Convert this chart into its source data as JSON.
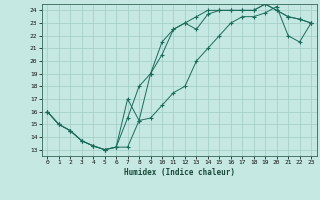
{
  "xlabel": "Humidex (Indice chaleur)",
  "bg_color": "#c5e8e2",
  "grid_color": "#a0ccc5",
  "line_color": "#1a6b5a",
  "xlim": [
    -0.5,
    23.5
  ],
  "ylim": [
    12.5,
    24.5
  ],
  "xticks": [
    0,
    1,
    2,
    3,
    4,
    5,
    6,
    7,
    8,
    9,
    10,
    11,
    12,
    13,
    14,
    15,
    16,
    17,
    18,
    19,
    20,
    21,
    22,
    23
  ],
  "yticks": [
    13,
    14,
    15,
    16,
    17,
    18,
    19,
    20,
    21,
    22,
    23,
    24
  ],
  "line1_x": [
    0,
    1,
    2,
    3,
    4,
    5,
    6,
    7,
    8,
    9,
    10,
    11,
    12,
    13,
    14,
    15,
    16,
    17,
    18,
    19,
    20,
    21,
    22,
    23
  ],
  "line1_y": [
    16,
    15,
    14.5,
    13.7,
    13.3,
    13.0,
    13.2,
    17.0,
    15.3,
    19.0,
    20.5,
    22.5,
    23.0,
    22.5,
    23.7,
    24.0,
    24.0,
    24.0,
    24.0,
    24.5,
    24.0,
    23.5,
    23.3,
    23.0
  ],
  "line2_x": [
    0,
    1,
    2,
    3,
    4,
    5,
    6,
    7,
    8,
    9,
    10,
    11,
    12,
    13,
    14,
    15,
    16,
    17,
    18,
    19,
    20,
    21,
    22,
    23
  ],
  "line2_y": [
    16,
    15,
    14.5,
    13.7,
    13.3,
    13.0,
    13.2,
    15.5,
    18.0,
    19.0,
    21.5,
    22.5,
    23.0,
    23.5,
    24.0,
    24.0,
    24.0,
    24.0,
    24.0,
    24.5,
    24.0,
    23.5,
    23.3,
    23.0
  ],
  "line3_x": [
    0,
    1,
    2,
    3,
    4,
    5,
    6,
    7,
    8,
    9,
    10,
    11,
    12,
    13,
    14,
    15,
    16,
    17,
    18,
    19,
    20,
    21,
    22,
    23
  ],
  "line3_y": [
    16.0,
    15.0,
    14.5,
    13.7,
    13.3,
    13.0,
    13.2,
    13.2,
    15.3,
    15.5,
    16.5,
    17.5,
    18.0,
    20.0,
    21.0,
    22.0,
    23.0,
    23.5,
    23.5,
    23.8,
    24.3,
    22.0,
    21.5,
    23.0
  ]
}
